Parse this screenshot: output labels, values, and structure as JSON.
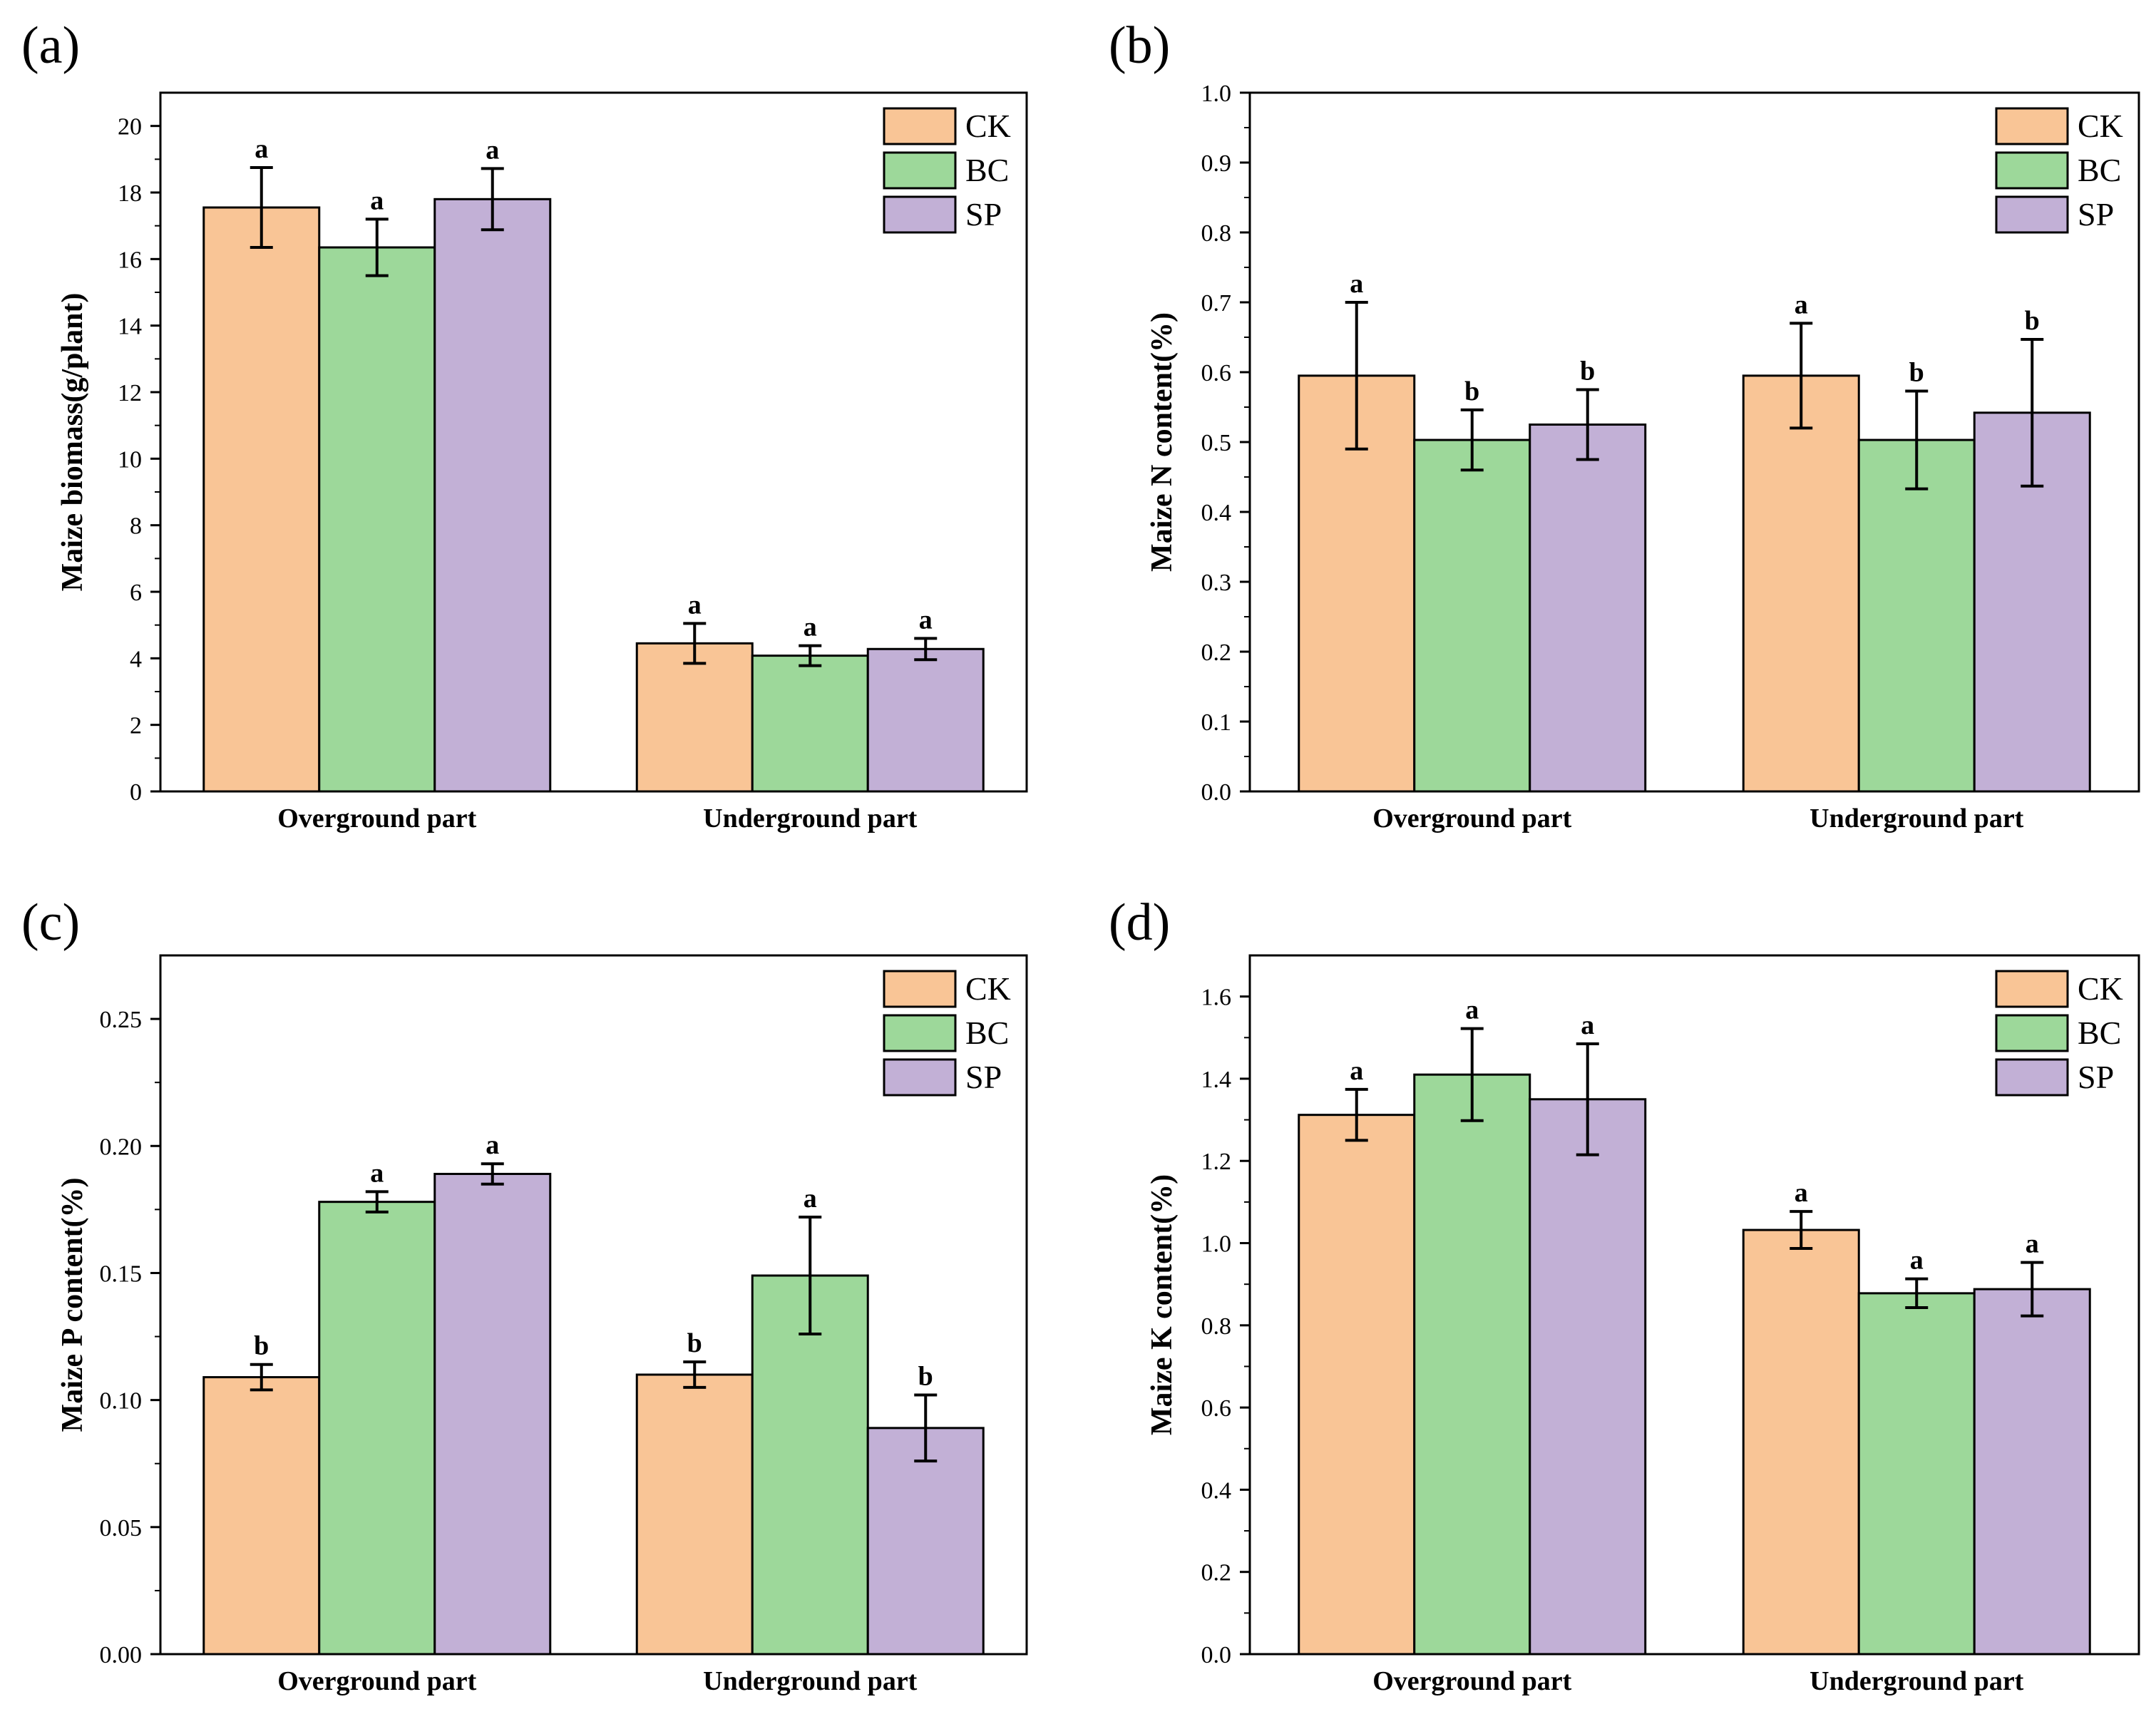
{
  "colors": {
    "CK": "#f9c596",
    "BC": "#9dd89a",
    "SP": "#c2b0d6"
  },
  "chart_data": [
    {
      "panel": "(a)",
      "type": "bar",
      "ylabel": "Maize biomass(g/plant)",
      "categories": [
        "Overground part",
        "Underground part"
      ],
      "ylim": [
        0,
        21
      ],
      "yticks": [
        "0",
        "2",
        "4",
        "6",
        "8",
        "10",
        "12",
        "14",
        "16",
        "18",
        "20"
      ],
      "ytick_values": [
        0,
        2,
        4,
        6,
        8,
        10,
        12,
        14,
        16,
        18,
        20
      ],
      "legend": [
        "CK",
        "BC",
        "SP"
      ],
      "legend_position": "top-right",
      "series": [
        {
          "name": "CK",
          "values": [
            17.55,
            4.45
          ],
          "errors": [
            1.2,
            0.6
          ],
          "labels": [
            "a",
            "a"
          ]
        },
        {
          "name": "BC",
          "values": [
            16.35,
            4.08
          ],
          "errors": [
            0.85,
            0.3
          ],
          "labels": [
            "a",
            "a"
          ]
        },
        {
          "name": "SP",
          "values": [
            17.8,
            4.28
          ],
          "errors": [
            0.92,
            0.32
          ],
          "labels": [
            "a",
            "a"
          ]
        }
      ]
    },
    {
      "panel": "(b)",
      "type": "bar",
      "ylabel": "Maize N content(%)",
      "categories": [
        "Overground part",
        "Underground part"
      ],
      "ylim": [
        0,
        1.0
      ],
      "yticks": [
        "0.0",
        "0.1",
        "0.2",
        "0.3",
        "0.4",
        "0.5",
        "0.6",
        "0.7",
        "0.8",
        "0.9",
        "1.0"
      ],
      "ytick_values": [
        0,
        0.1,
        0.2,
        0.3,
        0.4,
        0.5,
        0.6,
        0.7,
        0.8,
        0.9,
        1.0
      ],
      "legend": [
        "CK",
        "BC",
        "SP"
      ],
      "legend_position": "top-right",
      "series": [
        {
          "name": "CK",
          "values": [
            0.595,
            0.595
          ],
          "errors": [
            0.105,
            0.075
          ],
          "labels": [
            "a",
            "a"
          ]
        },
        {
          "name": "BC",
          "values": [
            0.503,
            0.503
          ],
          "errors": [
            0.043,
            0.07
          ],
          "labels": [
            "b",
            "b"
          ]
        },
        {
          "name": "SP",
          "values": [
            0.525,
            0.542
          ],
          "errors": [
            0.05,
            0.105
          ],
          "labels": [
            "b",
            "b"
          ]
        }
      ]
    },
    {
      "panel": "(c)",
      "type": "bar",
      "ylabel": "Maize P content(%)",
      "categories": [
        "Overground part",
        "Underground part"
      ],
      "ylim": [
        0,
        0.275
      ],
      "yticks": [
        "0.00",
        "0.05",
        "0.10",
        "0.15",
        "0.20",
        "0.25"
      ],
      "ytick_values": [
        0,
        0.05,
        0.1,
        0.15,
        0.2,
        0.25
      ],
      "legend": [
        "CK",
        "BC",
        "SP"
      ],
      "legend_position": "top-right",
      "series": [
        {
          "name": "CK",
          "values": [
            0.109,
            0.11
          ],
          "errors": [
            0.005,
            0.005
          ],
          "labels": [
            "b",
            "b"
          ]
        },
        {
          "name": "BC",
          "values": [
            0.178,
            0.149
          ],
          "errors": [
            0.004,
            0.023
          ],
          "labels": [
            "a",
            "a"
          ]
        },
        {
          "name": "SP",
          "values": [
            0.189,
            0.089
          ],
          "errors": [
            0.004,
            0.013
          ],
          "labels": [
            "a",
            "b"
          ]
        }
      ]
    },
    {
      "panel": "(d)",
      "type": "bar",
      "ylabel": "Maize K content(%)",
      "categories": [
        "Overground part",
        "Underground part"
      ],
      "ylim": [
        0,
        1.7
      ],
      "yticks": [
        "0.0",
        "0.2",
        "0.4",
        "0.6",
        "0.8",
        "1.0",
        "1.2",
        "1.4",
        "1.6"
      ],
      "ytick_values": [
        0,
        0.2,
        0.4,
        0.6,
        0.8,
        1.0,
        1.2,
        1.4,
        1.6
      ],
      "legend": [
        "CK",
        "BC",
        "SP"
      ],
      "legend_position": "top-right",
      "series": [
        {
          "name": "CK",
          "values": [
            1.312,
            1.032
          ],
          "errors": [
            0.062,
            0.045
          ],
          "labels": [
            "a",
            "a"
          ]
        },
        {
          "name": "BC",
          "values": [
            1.41,
            0.878
          ],
          "errors": [
            0.112,
            0.035
          ],
          "labels": [
            "a",
            "a"
          ]
        },
        {
          "name": "SP",
          "values": [
            1.35,
            0.888
          ],
          "errors": [
            0.135,
            0.065
          ],
          "labels": [
            "a",
            "a"
          ]
        }
      ]
    }
  ]
}
